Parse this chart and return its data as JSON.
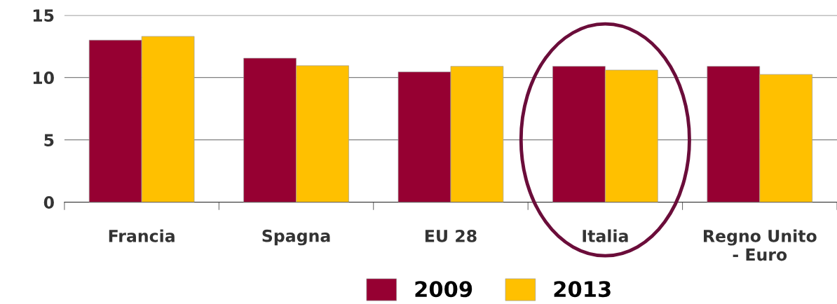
{
  "chart_data": {
    "type": "bar",
    "categories": [
      "Francia",
      "Spagna",
      "EU 28",
      "Italia",
      "Regno Unito\n- Euro"
    ],
    "series": [
      {
        "name": "2009",
        "color": "#960032",
        "values": [
          13.0,
          11.55,
          10.45,
          10.9,
          10.9
        ]
      },
      {
        "name": "2013",
        "color": "#ffc000",
        "values": [
          13.3,
          10.95,
          10.9,
          10.6,
          10.25
        ]
      }
    ],
    "ylim": [
      0,
      15
    ],
    "yticks": [
      0,
      5,
      10,
      15
    ],
    "grid": "y",
    "legend": "bottom"
  }
}
